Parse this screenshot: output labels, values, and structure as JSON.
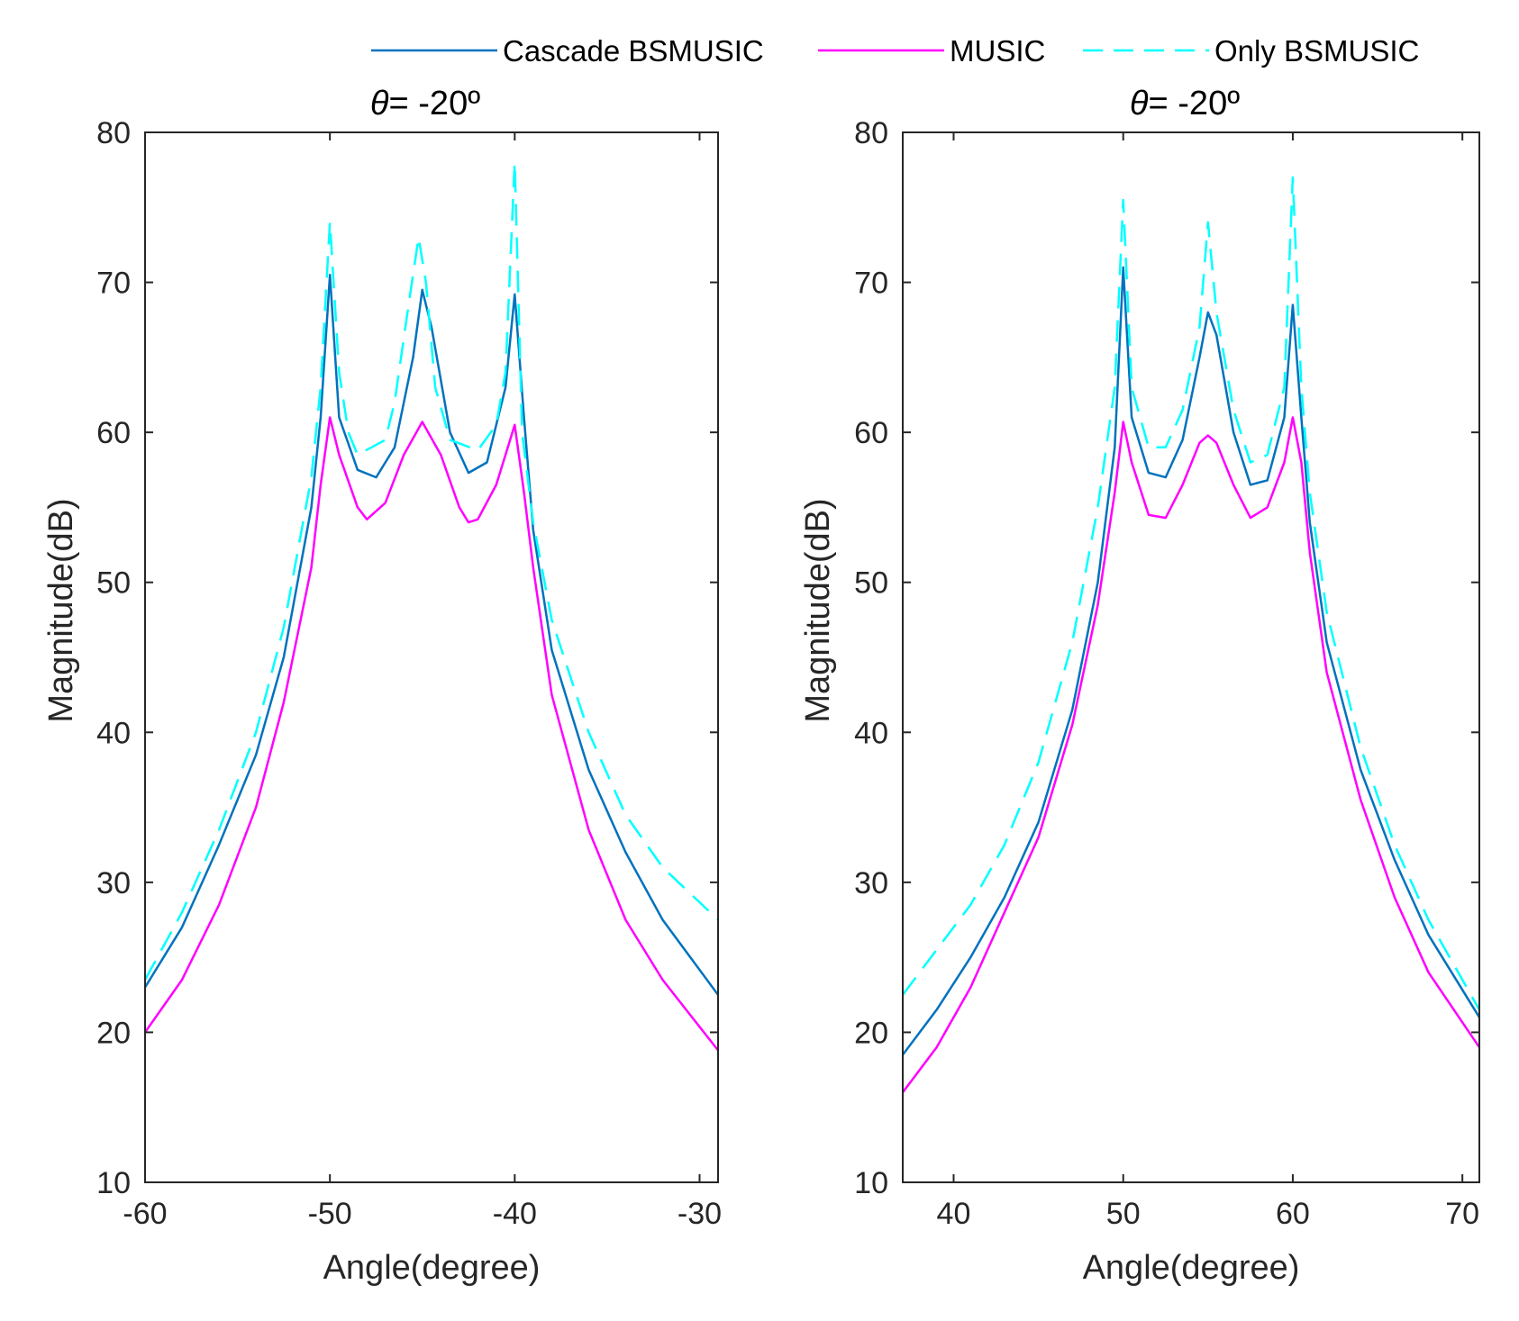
{
  "legend": {
    "entries": [
      {
        "label": "Cascade BSMUSIC",
        "color": "#0072BD",
        "style": "solid"
      },
      {
        "label": "MUSIC",
        "color": "#FF00FF",
        "style": "solid"
      },
      {
        "label": "Only BSMUSIC",
        "color": "#00FFFF",
        "style": "dashed"
      }
    ]
  },
  "colors": {
    "cascade": "#0072BD",
    "music": "#FF00FF",
    "only": "#00FFFF",
    "axis": "#262626"
  },
  "chart_data": [
    {
      "type": "line",
      "title_symbol": "θ",
      "title_rest": "= -20º",
      "xlabel": "Angle(degree)",
      "ylabel": "Magnitude(dB)",
      "xlim": [
        -60,
        -29
      ],
      "ylim": [
        10,
        80
      ],
      "xticks": [
        -60,
        -50,
        -40,
        -30
      ],
      "yticks": [
        10,
        20,
        30,
        40,
        50,
        60,
        70,
        80
      ],
      "xtick_labels": [
        "-60",
        "-50",
        "-40",
        "-30"
      ],
      "ytick_labels": [
        "10",
        "20",
        "30",
        "40",
        "50",
        "60",
        "70",
        "80"
      ],
      "series": [
        {
          "name": "Cascade BSMUSIC",
          "style": "solid",
          "x": [
            -60,
            -58,
            -56,
            -54,
            -52.5,
            -51,
            -50.5,
            -50,
            -49.5,
            -48.5,
            -47.5,
            -46.5,
            -45.5,
            -45,
            -44.5,
            -43.5,
            -42.5,
            -41.5,
            -40.5,
            -40,
            -39.5,
            -39,
            -38,
            -36,
            -34,
            -32,
            -29
          ],
          "y": [
            23,
            27,
            32.5,
            38.5,
            45,
            55,
            61,
            70.5,
            61,
            57.5,
            57,
            59,
            65,
            69.5,
            67,
            60,
            57.3,
            58,
            63,
            69.2,
            61,
            53.5,
            45.5,
            37.5,
            32,
            27.5,
            22.5
          ]
        },
        {
          "name": "MUSIC",
          "style": "solid",
          "x": [
            -60,
            -58,
            -56,
            -54,
            -52.5,
            -51,
            -50.5,
            -50,
            -49.5,
            -48.5,
            -48,
            -47,
            -46,
            -45,
            -44,
            -43,
            -42.5,
            -42,
            -41,
            -40.5,
            -40,
            -39.5,
            -39,
            -38,
            -36,
            -34,
            -32,
            -29
          ],
          "y": [
            20,
            23.5,
            28.5,
            35,
            42,
            51,
            56.5,
            61,
            58.5,
            55,
            54.2,
            55.3,
            58.5,
            60.7,
            58.5,
            55,
            54,
            54.2,
            56.5,
            58.5,
            60.5,
            56,
            51,
            42.5,
            33.5,
            27.5,
            23.5,
            18.8
          ]
        },
        {
          "name": "Only BSMUSIC",
          "style": "dashed",
          "x": [
            -60,
            -58,
            -56,
            -54,
            -52.5,
            -51,
            -50.5,
            -50,
            -49.5,
            -49,
            -48.5,
            -47,
            -46.5,
            -45.8,
            -45.2,
            -44.8,
            -44.3,
            -43.5,
            -42,
            -41,
            -40.5,
            -40,
            -39.6,
            -39,
            -38,
            -36,
            -34,
            -32,
            -29
          ],
          "y": [
            23.5,
            28,
            33.5,
            40,
            47,
            57,
            63,
            74,
            64,
            60,
            58.5,
            59.5,
            62,
            68,
            73,
            70,
            63,
            59.5,
            58.8,
            60.5,
            64,
            78,
            60,
            54,
            47.5,
            40,
            34.5,
            31,
            27.5
          ]
        }
      ]
    },
    {
      "type": "line",
      "title_symbol": "θ",
      "title_rest": "= -20º",
      "xlabel": "Angle(degree)",
      "ylabel": "Magnitude(dB)",
      "xlim": [
        37,
        71
      ],
      "ylim": [
        10,
        80
      ],
      "xticks": [
        40,
        50,
        60,
        70
      ],
      "yticks": [
        10,
        20,
        30,
        40,
        50,
        60,
        70,
        80
      ],
      "xtick_labels": [
        "40",
        "50",
        "60",
        "70"
      ],
      "ytick_labels": [
        "10",
        "20",
        "30",
        "40",
        "50",
        "60",
        "70",
        "80"
      ],
      "series": [
        {
          "name": "Cascade BSMUSIC",
          "style": "solid",
          "x": [
            37,
            39,
            41,
            43,
            45,
            47,
            48.5,
            49.5,
            50,
            50.5,
            51.5,
            52.5,
            53.5,
            54.5,
            55,
            55.5,
            56.5,
            57.5,
            58.5,
            59.5,
            60,
            60.5,
            61,
            62,
            64,
            66,
            68,
            71
          ],
          "y": [
            18.5,
            21.5,
            25,
            29,
            34,
            41.5,
            50,
            59,
            71,
            61,
            57.3,
            57,
            59.5,
            65,
            68,
            66.5,
            60,
            56.5,
            56.8,
            61,
            68.5,
            61,
            54,
            46,
            37.5,
            31.5,
            26.5,
            21
          ]
        },
        {
          "name": "MUSIC",
          "style": "solid",
          "x": [
            37,
            39,
            41,
            43,
            45,
            47,
            48.5,
            49.5,
            50,
            50.5,
            51.5,
            52.5,
            53.5,
            54.5,
            55,
            55.5,
            56.5,
            57.5,
            58.5,
            59.5,
            60,
            60.5,
            61,
            62,
            64,
            66,
            68,
            71
          ],
          "y": [
            16,
            19,
            23,
            28,
            33,
            40.5,
            48.5,
            56,
            60.7,
            58,
            54.5,
            54.3,
            56.5,
            59.3,
            59.8,
            59.3,
            56.5,
            54.3,
            55,
            58,
            61,
            58,
            52,
            44,
            35.5,
            29,
            24,
            19
          ]
        },
        {
          "name": "Only BSMUSIC",
          "style": "dashed",
          "x": [
            37,
            39,
            41,
            43,
            45,
            47,
            48.5,
            49.5,
            50,
            50.5,
            51.5,
            52.5,
            53.5,
            54.5,
            55,
            55.5,
            56.5,
            57.5,
            58.5,
            59.5,
            60,
            60.5,
            61,
            62,
            64,
            66,
            68,
            71
          ],
          "y": [
            22.5,
            25.5,
            28.5,
            32.5,
            38,
            46,
            55,
            63,
            75.5,
            63,
            59,
            59,
            61.5,
            67,
            74,
            68,
            61.5,
            58,
            58.5,
            63,
            77,
            63,
            56,
            48,
            39,
            32.5,
            27.5,
            21.5
          ]
        }
      ]
    }
  ]
}
